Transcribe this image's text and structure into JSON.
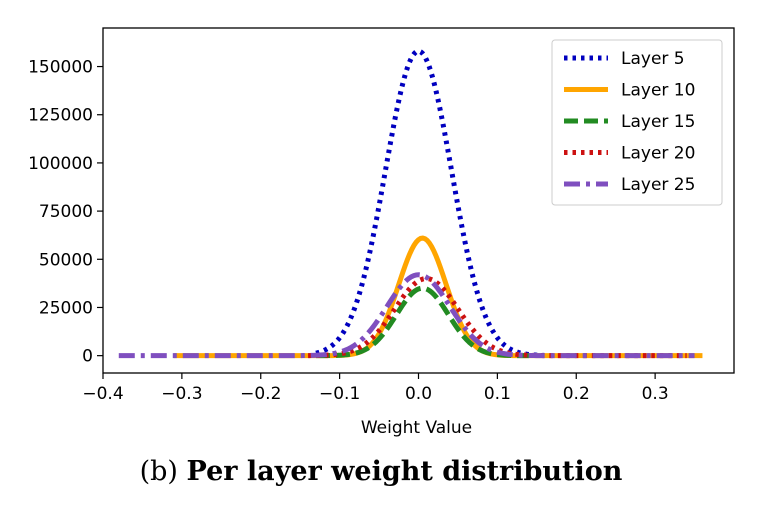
{
  "chart_data": {
    "type": "line",
    "xlabel": "Weight Value",
    "ylabel": "",
    "xlim": [
      -0.4,
      0.4
    ],
    "ylim": [
      -9000,
      170000
    ],
    "x_ticks": [
      -0.4,
      -0.3,
      -0.2,
      -0.1,
      0.0,
      0.1,
      0.2,
      0.3
    ],
    "x_tick_labels": [
      "−0.4",
      "−0.3",
      "−0.2",
      "−0.1",
      "0.0",
      "0.1",
      "0.2",
      "0.3"
    ],
    "y_ticks": [
      0,
      25000,
      50000,
      75000,
      100000,
      125000,
      150000
    ],
    "y_tick_labels": [
      "0",
      "25000",
      "50000",
      "75000",
      "100000",
      "125000",
      "150000"
    ],
    "legend_position": "top-right",
    "grid": false,
    "series": [
      {
        "name": "Layer 5",
        "color": "#0000bf",
        "style": "dotted",
        "peak": 158000,
        "center": 0.0,
        "sigma": 0.042,
        "x_range": [
          -0.13,
          0.16
        ]
      },
      {
        "name": "Layer 10",
        "color": "#ffa500",
        "style": "solid",
        "peak": 61000,
        "center": 0.005,
        "sigma": 0.03,
        "x_range": [
          -0.31,
          0.36
        ]
      },
      {
        "name": "Layer 15",
        "color": "#228b22",
        "style": "dashed",
        "peak": 35000,
        "center": 0.005,
        "sigma": 0.033,
        "x_range": [
          -0.13,
          0.14
        ]
      },
      {
        "name": "Layer 20",
        "color": "#cc1111",
        "style": "dotted",
        "peak": 40000,
        "center": 0.01,
        "sigma": 0.04,
        "x_range": [
          -0.14,
          0.34
        ]
      },
      {
        "name": "Layer 25",
        "color": "#7f4fbf",
        "style": "dashdot",
        "peak": 42000,
        "center": 0.0,
        "sigma": 0.04,
        "x_range": [
          -0.38,
          0.35
        ]
      }
    ]
  },
  "caption": {
    "prefix": "(b)",
    "title": "Per layer weight distribution"
  }
}
